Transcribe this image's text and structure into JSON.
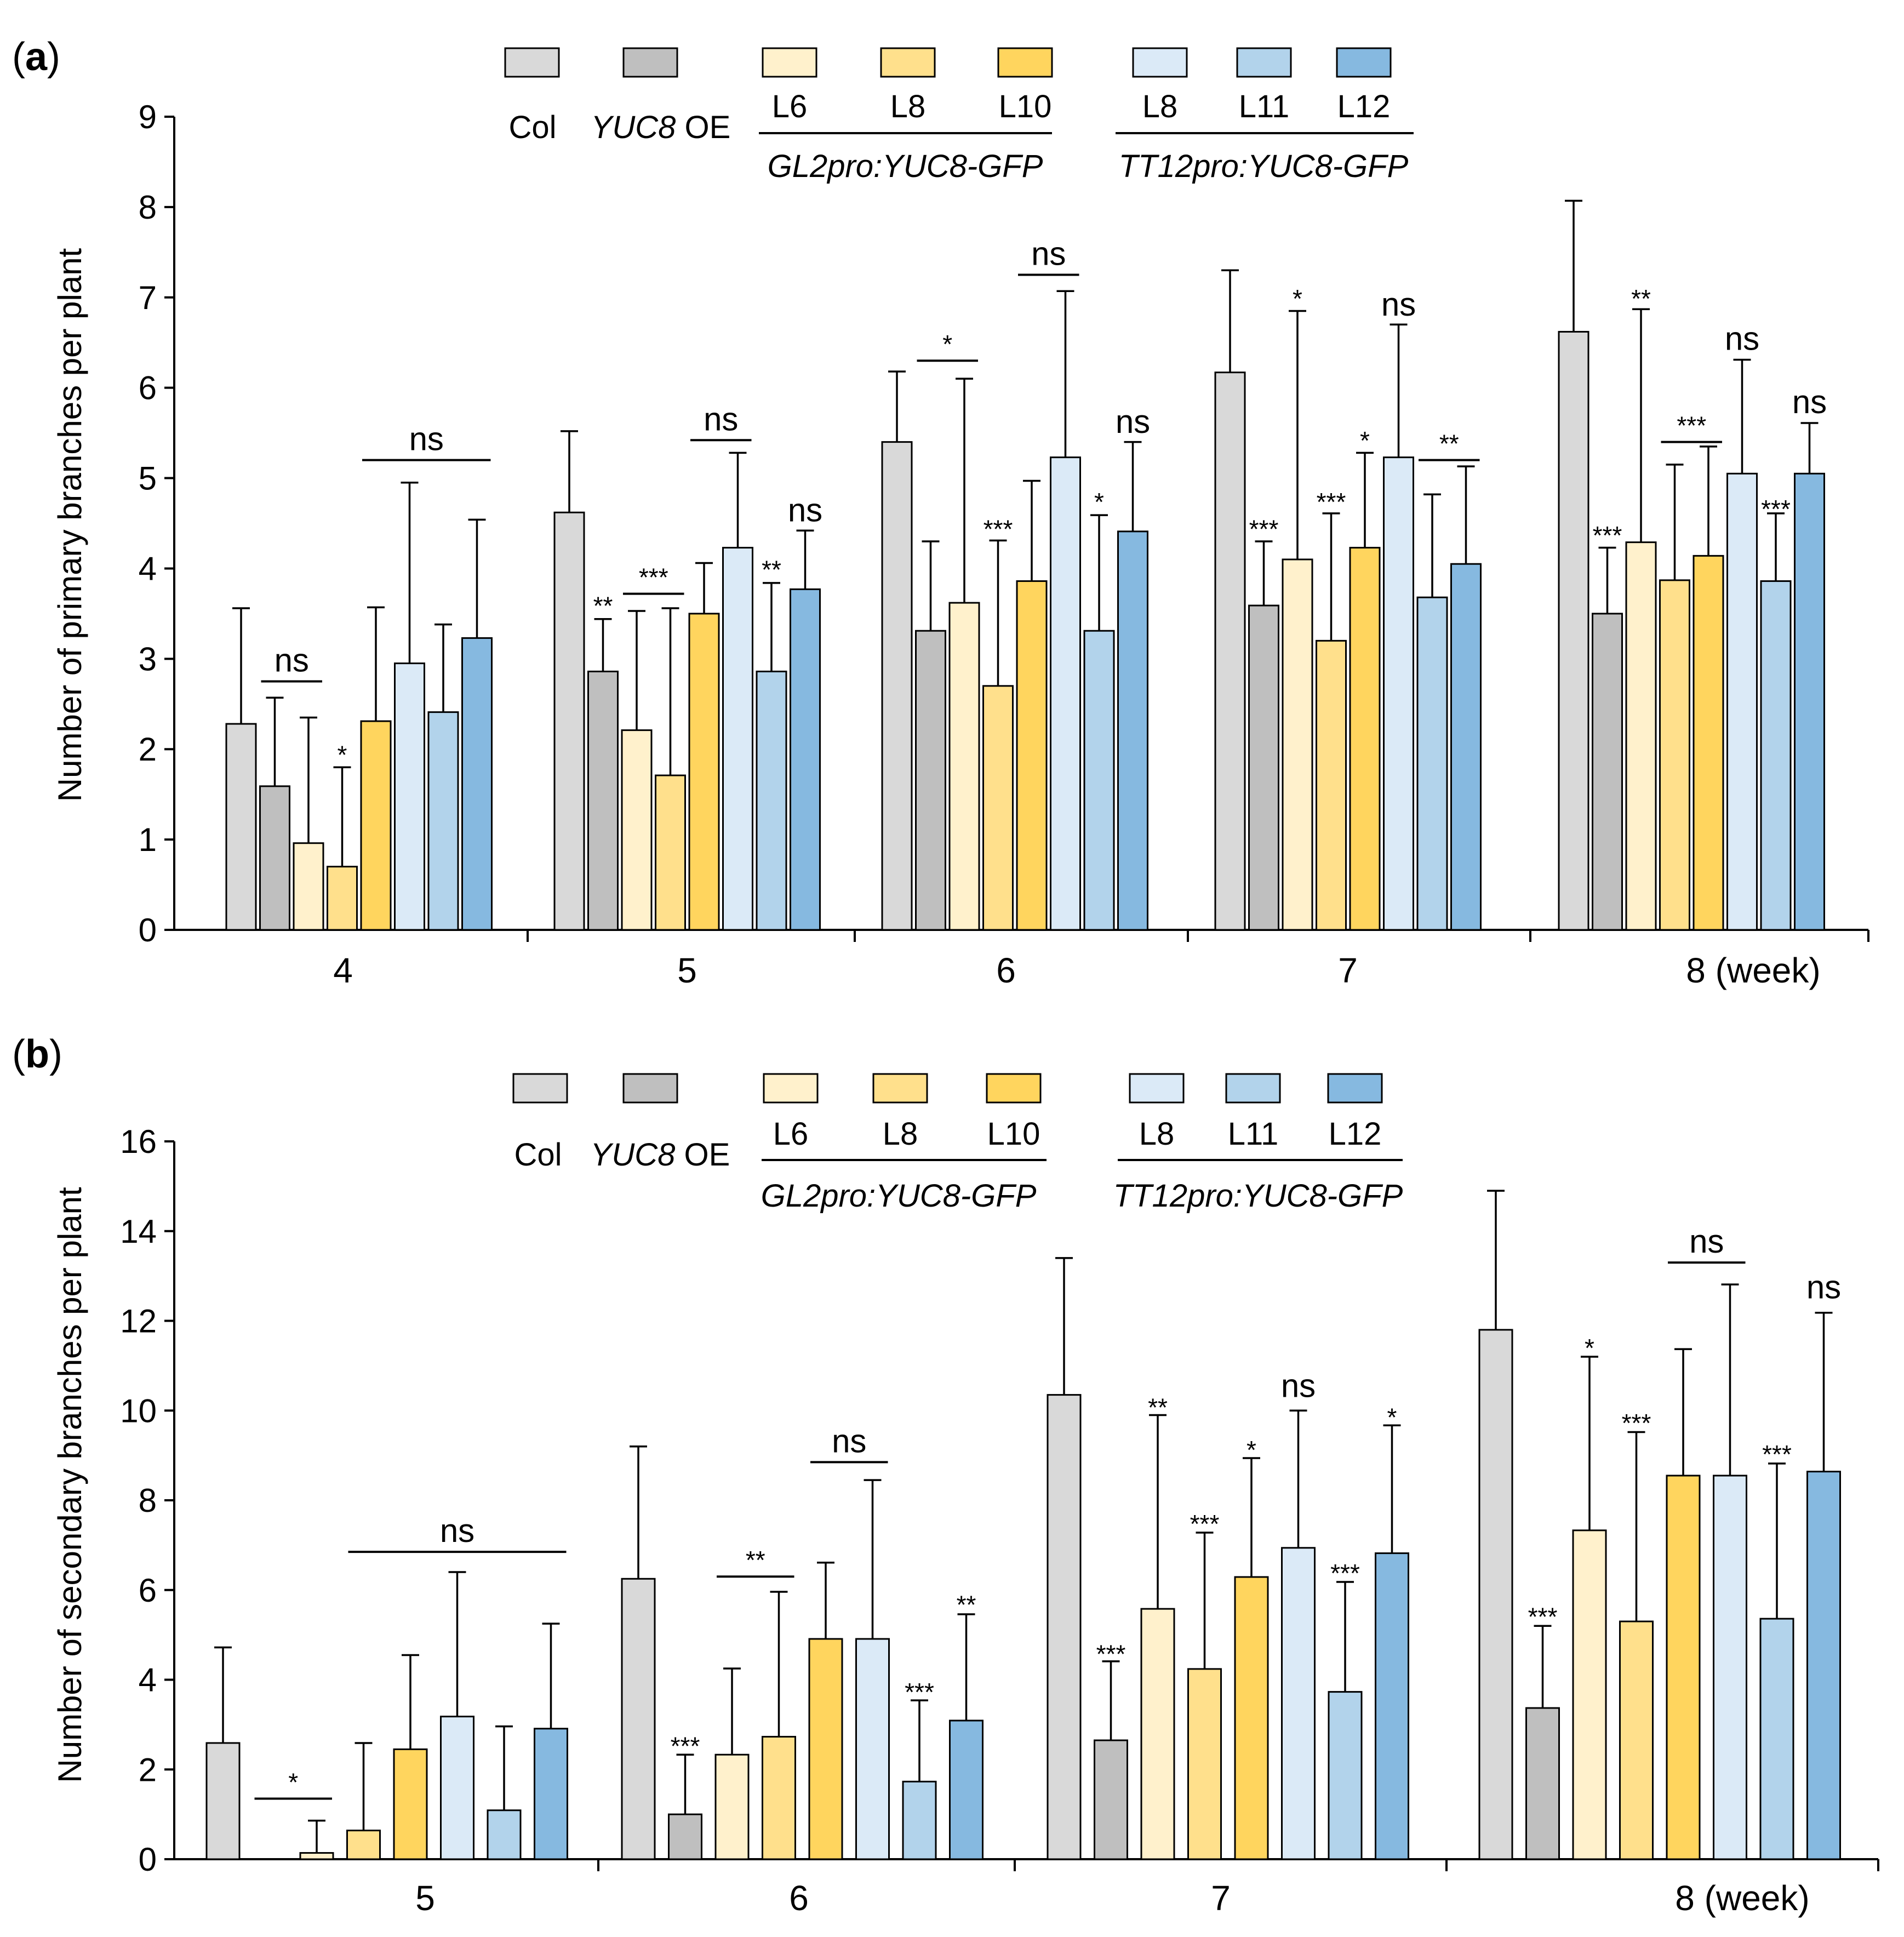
{
  "figure_note": "Two-panel grouped bar chart with error bars",
  "series_styles": [
    {
      "key": "col",
      "color": "#d9d9d9"
    },
    {
      "key": "yuc8oe",
      "color": "#bfbfbf"
    },
    {
      "key": "gl2_l6",
      "color": "#fff1cc"
    },
    {
      "key": "gl2_l8",
      "color": "#ffe08c"
    },
    {
      "key": "gl2_l10",
      "color": "#ffd55e"
    },
    {
      "key": "tt12_l8",
      "color": "#dbeaf7"
    },
    {
      "key": "tt12_l11",
      "color": "#b2d3eb"
    },
    {
      "key": "tt12_l12",
      "color": "#86b9e0"
    }
  ],
  "legend": {
    "col": "Col",
    "yuc8_gene": "YUC8",
    "yuc8_suffix": " OE",
    "gl2_lines": [
      "L6",
      "L8",
      "L10"
    ],
    "tt12_lines": [
      "L8",
      "L11",
      "L12"
    ],
    "gl2_construct": "GL2pro:YUC8-GFP",
    "tt12_construct": "TT12pro:YUC8-GFP"
  },
  "chart_data": [
    {
      "panel_label": "a",
      "type": "bar",
      "ylabel": "Number of primary branches per plant",
      "ylim": [
        0,
        9
      ],
      "yticks": [
        0,
        1,
        2,
        3,
        4,
        5,
        6,
        7,
        8,
        9
      ],
      "categories": [
        "4",
        "5",
        "6",
        "7",
        "8 (week)"
      ],
      "series": [
        {
          "name": "Col",
          "values": [
            2.28,
            4.62,
            5.4,
            6.17,
            6.62
          ],
          "errors": [
            1.28,
            0.9,
            0.78,
            1.13,
            1.45
          ]
        },
        {
          "name": "YUC8 OE",
          "values": [
            1.59,
            2.86,
            3.31,
            3.59,
            3.5
          ],
          "errors": [
            0.98,
            0.58,
            0.99,
            0.71,
            0.73
          ]
        },
        {
          "name": "GL2pro:YUC8-GFP L6",
          "values": [
            0.96,
            2.21,
            3.62,
            4.1,
            4.29
          ],
          "errors": [
            1.39,
            1.32,
            2.48,
            2.75,
            2.58
          ]
        },
        {
          "name": "GL2pro:YUC8-GFP L8",
          "values": [
            0.7,
            1.71,
            2.7,
            3.2,
            3.87
          ],
          "errors": [
            1.1,
            1.85,
            1.61,
            1.41,
            1.28
          ]
        },
        {
          "name": "GL2pro:YUC8-GFP L10",
          "values": [
            2.31,
            3.5,
            3.86,
            4.23,
            4.14
          ],
          "errors": [
            1.26,
            0.56,
            1.11,
            1.05,
            1.21
          ]
        },
        {
          "name": "TT12pro:YUC8-GFP L8",
          "values": [
            2.95,
            4.23,
            5.23,
            5.23,
            5.05
          ],
          "errors": [
            2.0,
            1.05,
            1.84,
            1.47,
            1.26
          ]
        },
        {
          "name": "TT12pro:YUC8-GFP L11",
          "values": [
            2.41,
            2.86,
            3.31,
            3.68,
            3.86
          ],
          "errors": [
            0.97,
            0.98,
            1.28,
            1.14,
            0.75
          ]
        },
        {
          "name": "TT12pro:YUC8-GFP L12",
          "values": [
            3.23,
            3.77,
            4.41,
            4.05,
            5.05
          ],
          "errors": [
            1.31,
            0.65,
            0.99,
            1.08,
            0.56
          ]
        }
      ],
      "annotations": [
        {
          "label": "ns",
          "group": 0,
          "from": 1,
          "to": 2,
          "y": 2.75
        },
        {
          "label": "*",
          "group": 0,
          "bar": 3,
          "y": 1.9
        },
        {
          "label": "ns",
          "group": 0,
          "from": 4,
          "to": 7,
          "y": 5.2
        },
        {
          "label": "**",
          "group": 1,
          "bar": 1,
          "y": 3.55
        },
        {
          "label": "***",
          "group": 1,
          "from": 2,
          "to": 3,
          "y": 3.72
        },
        {
          "label": "ns",
          "group": 1,
          "from": 4,
          "to": 5,
          "y": 5.42
        },
        {
          "label": "**",
          "group": 1,
          "bar": 6,
          "y": 3.95
        },
        {
          "label": "ns",
          "group": 1,
          "bar": 7,
          "y": 4.52
        },
        {
          "label": "*",
          "group": 2,
          "from": 1,
          "to": 2,
          "y": 6.3
        },
        {
          "label": "***",
          "group": 2,
          "bar": 3,
          "y": 4.4
        },
        {
          "label": "ns",
          "group": 2,
          "from": 4,
          "to": 5,
          "y": 7.25
        },
        {
          "label": "*",
          "group": 2,
          "bar": 6,
          "y": 4.7
        },
        {
          "label": "ns",
          "group": 2,
          "bar": 7,
          "y": 5.5
        },
        {
          "label": "***",
          "group": 3,
          "bar": 1,
          "y": 4.4
        },
        {
          "label": "*",
          "group": 3,
          "bar": 2,
          "y": 6.95
        },
        {
          "label": "***",
          "group": 3,
          "bar": 3,
          "y": 4.7
        },
        {
          "label": "*",
          "group": 3,
          "bar": 4,
          "y": 5.38
        },
        {
          "label": "ns",
          "group": 3,
          "bar": 5,
          "y": 6.8
        },
        {
          "label": "**",
          "group": 3,
          "from": 6,
          "to": 7,
          "y": 5.2
        },
        {
          "label": "***",
          "group": 4,
          "bar": 1,
          "y": 4.33
        },
        {
          "label": "**",
          "group": 4,
          "bar": 2,
          "y": 6.95
        },
        {
          "label": "***",
          "group": 4,
          "from": 3,
          "to": 4,
          "y": 5.4
        },
        {
          "label": "ns",
          "group": 4,
          "bar": 5,
          "y": 6.42
        },
        {
          "label": "***",
          "group": 4,
          "bar": 6,
          "y": 4.62
        },
        {
          "label": "ns",
          "group": 4,
          "bar": 7,
          "y": 5.72
        }
      ]
    },
    {
      "panel_label": "b",
      "type": "bar",
      "ylabel": "Number of secondary branches per plant",
      "ylim": [
        0,
        16
      ],
      "yticks": [
        0,
        2,
        4,
        6,
        8,
        10,
        12,
        14,
        16
      ],
      "categories": [
        "5",
        "6",
        "7",
        "8 (week)"
      ],
      "series": [
        {
          "name": "Col",
          "values": [
            2.59,
            6.25,
            10.35,
            11.8
          ],
          "errors": [
            2.13,
            2.95,
            3.05,
            3.1
          ]
        },
        {
          "name": "YUC8 OE",
          "values": [
            0.0,
            1.0,
            2.65,
            3.37
          ],
          "errors": [
            0.0,
            1.33,
            1.76,
            1.83
          ]
        },
        {
          "name": "GL2pro:YUC8-GFP L6",
          "values": [
            0.14,
            2.33,
            5.58,
            7.33
          ],
          "errors": [
            0.72,
            1.92,
            4.32,
            3.87
          ]
        },
        {
          "name": "GL2pro:YUC8-GFP L8",
          "values": [
            0.64,
            2.73,
            4.24,
            5.3
          ],
          "errors": [
            1.95,
            3.23,
            3.04,
            4.22
          ]
        },
        {
          "name": "GL2pro:YUC8-GFP L10",
          "values": [
            2.45,
            4.91,
            6.29,
            8.55
          ],
          "errors": [
            2.1,
            1.7,
            2.65,
            2.82
          ]
        },
        {
          "name": "TT12pro:YUC8-GFP L8",
          "values": [
            3.18,
            4.91,
            6.94,
            8.55
          ],
          "errors": [
            3.22,
            3.54,
            3.06,
            4.26
          ]
        },
        {
          "name": "TT12pro:YUC8-GFP L11",
          "values": [
            1.09,
            1.73,
            3.73,
            5.36
          ],
          "errors": [
            1.87,
            1.81,
            2.45,
            3.46
          ]
        },
        {
          "name": "TT12pro:YUC8-GFP L12",
          "values": [
            2.91,
            3.09,
            6.82,
            8.64
          ],
          "errors": [
            2.34,
            2.37,
            2.85,
            3.54
          ]
        }
      ],
      "annotations": [
        {
          "label": "*",
          "group": 0,
          "from": 1,
          "to": 2,
          "y": 1.35
        },
        {
          "label": "ns",
          "group": 0,
          "from": 3,
          "to": 7,
          "y": 6.85
        },
        {
          "label": "***",
          "group": 1,
          "bar": 1,
          "y": 2.45
        },
        {
          "label": "**",
          "group": 1,
          "from": 2,
          "to": 3,
          "y": 6.3
        },
        {
          "label": "ns",
          "group": 1,
          "from": 4,
          "to": 5,
          "y": 8.85
        },
        {
          "label": "***",
          "group": 1,
          "bar": 6,
          "y": 3.65
        },
        {
          "label": "**",
          "group": 1,
          "bar": 7,
          "y": 5.6
        },
        {
          "label": "***",
          "group": 2,
          "bar": 1,
          "y": 4.5
        },
        {
          "label": "**",
          "group": 2,
          "bar": 2,
          "y": 10.0
        },
        {
          "label": "***",
          "group": 2,
          "bar": 3,
          "y": 7.4
        },
        {
          "label": "*",
          "group": 2,
          "bar": 4,
          "y": 9.05
        },
        {
          "label": "ns",
          "group": 2,
          "bar": 5,
          "y": 10.3
        },
        {
          "label": "***",
          "group": 2,
          "bar": 6,
          "y": 6.3
        },
        {
          "label": "*",
          "group": 2,
          "bar": 7,
          "y": 9.78
        },
        {
          "label": "***",
          "group": 3,
          "bar": 1,
          "y": 5.33
        },
        {
          "label": "*",
          "group": 3,
          "bar": 2,
          "y": 11.32
        },
        {
          "label": "***",
          "group": 3,
          "bar": 3,
          "y": 9.65
        },
        {
          "label": "ns",
          "group": 3,
          "from": 4,
          "to": 5,
          "y": 13.3
        },
        {
          "label": "***",
          "group": 3,
          "bar": 6,
          "y": 8.95
        },
        {
          "label": "ns",
          "group": 3,
          "bar": 7,
          "y": 12.5
        }
      ]
    }
  ]
}
